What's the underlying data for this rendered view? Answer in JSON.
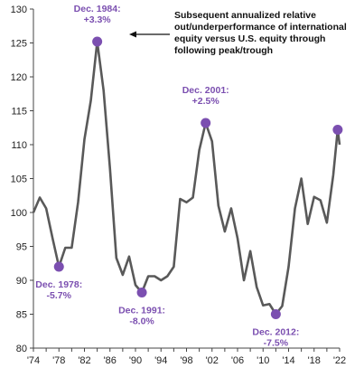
{
  "chart_data": {
    "type": "line",
    "title": "",
    "xlabel": "",
    "ylabel": "",
    "xlim": [
      1974,
      2022
    ],
    "ylim": [
      80,
      130
    ],
    "yticks": [
      80,
      85,
      90,
      95,
      100,
      105,
      110,
      115,
      120,
      125,
      130
    ],
    "xticks": [
      {
        "x": 1974,
        "label": "'74"
      },
      {
        "x": 1978,
        "label": "'78"
      },
      {
        "x": 1982,
        "label": "'82"
      },
      {
        "x": 1986,
        "label": "'86"
      },
      {
        "x": 1990,
        "label": "'90"
      },
      {
        "x": 1994,
        "label": "'94"
      },
      {
        "x": 1998,
        "label": "'98"
      },
      {
        "x": 2002,
        "label": "'02"
      },
      {
        "x": 2006,
        "label": "'06"
      },
      {
        "x": 2010,
        "label": "'10"
      },
      {
        "x": 2014,
        "label": "'14"
      },
      {
        "x": 2018,
        "label": "'18"
      },
      {
        "x": 2022,
        "label": "'22"
      }
    ],
    "series": [
      {
        "color": "#595959",
        "points": [
          [
            1974,
            100.0
          ],
          [
            1975,
            102.2
          ],
          [
            1976,
            100.6
          ],
          [
            1977,
            96.2
          ],
          [
            1978,
            92.0
          ],
          [
            1979,
            94.8
          ],
          [
            1980,
            94.8
          ],
          [
            1981,
            101.5
          ],
          [
            1982,
            110.8
          ],
          [
            1983,
            116.5
          ],
          [
            1984,
            125.2
          ],
          [
            1985,
            118.0
          ],
          [
            1986,
            106.5
          ],
          [
            1987,
            93.3
          ],
          [
            1988,
            90.8
          ],
          [
            1989,
            93.5
          ],
          [
            1990,
            89.3
          ],
          [
            1991,
            88.2
          ],
          [
            1992,
            90.6
          ],
          [
            1993,
            90.6
          ],
          [
            1994,
            90.0
          ],
          [
            1995,
            90.6
          ],
          [
            1996,
            92.0
          ],
          [
            1997,
            102.0
          ],
          [
            1998,
            101.5
          ],
          [
            1999,
            102.2
          ],
          [
            2000,
            109.2
          ],
          [
            2001,
            113.2
          ],
          [
            2002,
            110.5
          ],
          [
            2003,
            101.0
          ],
          [
            2004,
            97.2
          ],
          [
            2005,
            100.6
          ],
          [
            2006,
            96.2
          ],
          [
            2007,
            90.0
          ],
          [
            2008,
            94.3
          ],
          [
            2009,
            89.0
          ],
          [
            2010,
            86.3
          ],
          [
            2011,
            86.5
          ],
          [
            2012,
            85.0
          ],
          [
            2013,
            86.2
          ],
          [
            2014,
            92.0
          ],
          [
            2015,
            100.6
          ],
          [
            2016,
            105.0
          ],
          [
            2017,
            98.3
          ],
          [
            2018,
            102.3
          ],
          [
            2019,
            101.8
          ],
          [
            2020,
            98.5
          ],
          [
            2021,
            105.5
          ],
          [
            2021.7,
            112.2
          ],
          [
            2022,
            110.0
          ]
        ]
      }
    ],
    "highlights": [
      {
        "x": 1978,
        "y": 92.0,
        "label": [
          "Dec. 1978:",
          "-5.7%"
        ]
      },
      {
        "x": 1984,
        "y": 125.2,
        "label": [
          "Dec. 1984:",
          "+3.3%"
        ]
      },
      {
        "x": 1991,
        "y": 88.2,
        "label": [
          "Dec. 1991:",
          "-8.0%"
        ]
      },
      {
        "x": 2001,
        "y": 113.2,
        "label": [
          "Dec. 2001:",
          "+2.5%"
        ]
      },
      {
        "x": 2012,
        "y": 85.0,
        "label": [
          "Dec. 2012:",
          "-7.5%"
        ]
      },
      {
        "x": 2021.7,
        "y": 112.2,
        "label": []
      }
    ],
    "annotation": [
      "Subsequent annualized relative",
      "out/underperformance of international",
      "equity versus U.S. equity through",
      "following peak/trough"
    ],
    "highlight_color": "#7b4fb0",
    "grid": false,
    "legend": "none"
  }
}
